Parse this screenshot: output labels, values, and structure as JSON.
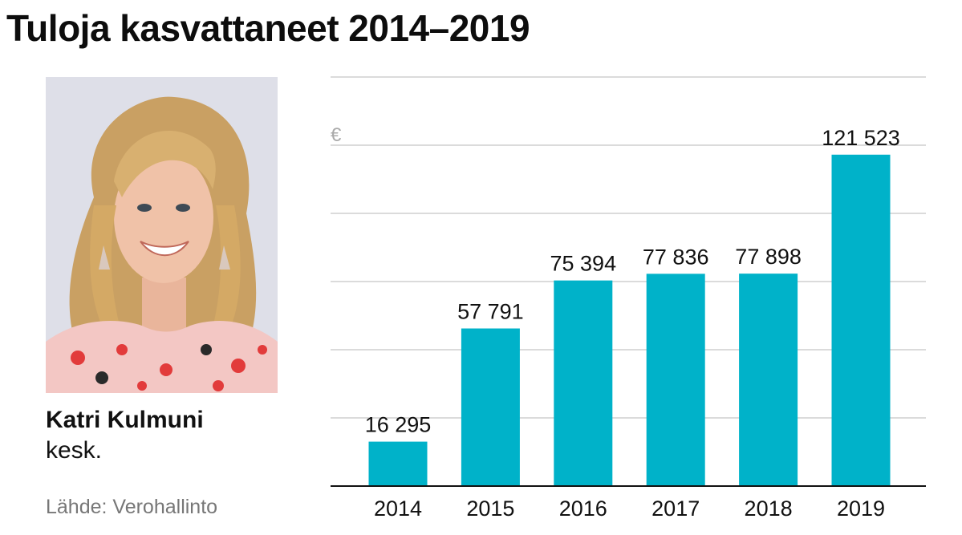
{
  "header": {
    "title": "Tuloja kasvattaneet 2014–2019"
  },
  "person": {
    "name": "Katri Kulmuni",
    "party": "kesk."
  },
  "source": "Lähde: Verohallinto",
  "colors": {
    "bar": "#00b2c9",
    "grid": "#cfcfcf",
    "baseline": "#111111"
  },
  "chart_data": {
    "type": "bar",
    "title": "Tuloja kasvattaneet 2014–2019",
    "unit": "€",
    "categories": [
      "2014",
      "2015",
      "2016",
      "2017",
      "2018",
      "2019"
    ],
    "values": [
      16295,
      57791,
      75394,
      77836,
      77898,
      121523
    ],
    "value_labels": [
      "16 295",
      "57 791",
      "75 394",
      "77 836",
      "77 898",
      "121 523"
    ],
    "ylim": [
      0,
      150000
    ],
    "grid": true,
    "legend": "none"
  }
}
